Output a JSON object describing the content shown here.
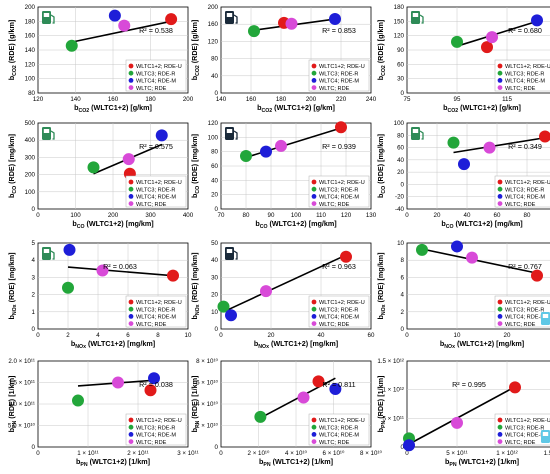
{
  "colors": {
    "WLTC1+2;RDE-U": "#e11a1a",
    "WLTC3;RDE-R": "#22a63a",
    "WLTC4;RDE-M": "#1e1ed8",
    "WLTC;RDE": "#d84ad8",
    "trendline": "#000000",
    "grid": "#c8c8c8"
  },
  "chart_data": [
    {
      "type": "scatter",
      "row": 0,
      "col": 0,
      "pump_icon": "fuel-pump-icon-green",
      "pump_pos": "top-left",
      "ylabel": "bCO2 (RDE) [g/km]",
      "xlabel": "bCO2 (WLTC1+2) [g/km]",
      "xlim": [
        120,
        200
      ],
      "ylim": [
        80,
        200
      ],
      "xticks": [
        120,
        140,
        160,
        180,
        200
      ],
      "yticks": [
        80,
        100,
        120,
        140,
        160,
        180,
        200
      ],
      "xtick_labels": [
        "120",
        "140",
        "160",
        "180",
        "200"
      ],
      "ytick_labels": [
        "80",
        "100",
        "120",
        "140",
        "160",
        "180",
        "200"
      ],
      "r2": "R² = 0.538",
      "r2_pos": "right",
      "points": [
        {
          "series": "WLTC1+2;RDE-U",
          "x": 191,
          "y": 183
        },
        {
          "series": "WLTC3;RDE-R",
          "x": 138,
          "y": 146
        },
        {
          "series": "WLTC4;RDE-M",
          "x": 161,
          "y": 188
        },
        {
          "series": "WLTC;RDE",
          "x": 166,
          "y": 174
        }
      ],
      "trend": [
        [
          138,
          151
        ],
        [
          191,
          180
        ]
      ],
      "legend": [
        "WLTC1+2; RDE-U",
        "WLTC3; RDE-R",
        "WLTC4; RDE-M",
        "WLTC; RDE"
      ]
    },
    {
      "type": "scatter",
      "row": 0,
      "col": 1,
      "pump_icon": "fuel-pump-icon-dark",
      "pump_pos": "top-left",
      "ylabel": "bCO2 (RDE) [g/km]",
      "xlabel": "bCO2 (WLTC1+2) [g/km]",
      "xlim": [
        140,
        240
      ],
      "ylim": [
        0,
        200
      ],
      "xticks": [
        140,
        160,
        180,
        200,
        220,
        240
      ],
      "yticks": [
        0,
        40,
        80,
        120,
        160,
        200
      ],
      "xtick_labels": [
        "140",
        "160",
        "180",
        "200",
        "220",
        "240"
      ],
      "ytick_labels": [
        "0",
        "40",
        "80",
        "120",
        "160",
        "200"
      ],
      "r2": "R² = 0.853",
      "r2_pos": "right",
      "points": [
        {
          "series": "WLTC1+2;RDE-U",
          "x": 182,
          "y": 163
        },
        {
          "series": "WLTC3;RDE-R",
          "x": 162,
          "y": 144
        },
        {
          "series": "WLTC4;RDE-M",
          "x": 216,
          "y": 172
        },
        {
          "series": "WLTC;RDE",
          "x": 187,
          "y": 161
        }
      ],
      "trend": [
        [
          162,
          146
        ],
        [
          216,
          172
        ]
      ],
      "legend": [
        "WLTC1+2; RDE-U",
        "WLTC3; RDE-R",
        "WLTC4; RDE-M",
        "WLTC; RDE"
      ]
    },
    {
      "type": "scatter",
      "row": 0,
      "col": 2,
      "pump_icon": "fuel-pump-icon-green",
      "pump_pos": "top-left",
      "ylabel": "bCO2 (RDE) [g/km]",
      "xlabel": "bCO2 (WLTC1+2) [g/km]",
      "xlim": [
        75,
        135
      ],
      "ylim": [
        0,
        180
      ],
      "xticks": [
        75,
        95,
        115,
        135
      ],
      "yticks": [
        0,
        30,
        60,
        90,
        120,
        150,
        180
      ],
      "xtick_labels": [
        "75",
        "95",
        "115",
        "135"
      ],
      "ytick_labels": [
        "0",
        "30",
        "60",
        "90",
        "120",
        "150",
        "180"
      ],
      "r2": "R² = 0.680",
      "r2_pos": "right",
      "points": [
        {
          "series": "WLTC1+2;RDE-U",
          "x": 107,
          "y": 96
        },
        {
          "series": "WLTC3;RDE-R",
          "x": 95,
          "y": 107
        },
        {
          "series": "WLTC4;RDE-M",
          "x": 127,
          "y": 152
        },
        {
          "series": "WLTC;RDE",
          "x": 109,
          "y": 117
        }
      ],
      "trend": [
        [
          95,
          98
        ],
        [
          127,
          150
        ]
      ],
      "legend": [
        "WLTC1+2; RDE-U",
        "WLTC3; RDE-R",
        "WLTC4; RDE-M",
        "WLTC; RDE"
      ]
    },
    {
      "type": "scatter",
      "row": 1,
      "col": 0,
      "pump_icon": "fuel-pump-icon-green",
      "pump_pos": "top-left",
      "ylabel": "bCO (RDE) [mg/km]",
      "xlabel": "bCO (WLTC1+2) [mg/km]",
      "xlim": [
        0,
        400
      ],
      "ylim": [
        0,
        500
      ],
      "xticks": [
        0,
        100,
        200,
        300,
        400
      ],
      "yticks": [
        0,
        100,
        200,
        300,
        400,
        500
      ],
      "xtick_labels": [
        "0",
        "100",
        "200",
        "300",
        "400"
      ],
      "ytick_labels": [
        "0",
        "100",
        "200",
        "300",
        "400",
        "500"
      ],
      "r2": "R² = 0.575",
      "r2_pos": "right",
      "points": [
        {
          "series": "WLTC1+2;RDE-U",
          "x": 245,
          "y": 205
        },
        {
          "series": "WLTC3;RDE-R",
          "x": 148,
          "y": 242
        },
        {
          "series": "WLTC4;RDE-M",
          "x": 330,
          "y": 428
        },
        {
          "series": "WLTC;RDE",
          "x": 242,
          "y": 290
        }
      ],
      "trend": [
        [
          148,
          205
        ],
        [
          330,
          375
        ]
      ],
      "legend": [
        "WLTC1+2; RDE-U",
        "WLTC3; RDE-R",
        "WLTC4; RDE-M",
        "WLTC; RDE"
      ]
    },
    {
      "type": "scatter",
      "row": 1,
      "col": 1,
      "pump_icon": "fuel-pump-icon-dark",
      "pump_pos": "top-left",
      "ylabel": "bCO (RDE) [mg/km]",
      "xlabel": "bCO (WLTC1+2) [mg/km]",
      "xlim": [
        70,
        130
      ],
      "ylim": [
        0,
        120
      ],
      "xticks": [
        70,
        80,
        90,
        100,
        110,
        120,
        130
      ],
      "yticks": [
        0,
        20,
        40,
        60,
        80,
        100,
        120
      ],
      "xtick_labels": [
        "70",
        "80",
        "90",
        "100",
        "110",
        "120",
        "130"
      ],
      "ytick_labels": [
        "0",
        "20",
        "40",
        "60",
        "80",
        "100",
        "120"
      ],
      "r2": "R² = 0.939",
      "r2_pos": "right",
      "points": [
        {
          "series": "WLTC1+2;RDE-U",
          "x": 118,
          "y": 114
        },
        {
          "series": "WLTC3;RDE-R",
          "x": 80,
          "y": 74
        },
        {
          "series": "WLTC4;RDE-M",
          "x": 88,
          "y": 80
        },
        {
          "series": "WLTC;RDE",
          "x": 94,
          "y": 88
        }
      ],
      "trend": [
        [
          80,
          72
        ],
        [
          118,
          113
        ]
      ],
      "legend": [
        "WLTC1+2; RDE-U",
        "WLTC3; RDE-R",
        "WLTC4; RDE-M",
        "WLTC; RDE"
      ]
    },
    {
      "type": "scatter",
      "row": 1,
      "col": 2,
      "pump_icon": "fuel-pump-icon-green",
      "pump_pos": "top-left",
      "ylabel": "bCO (RDE) [mg/km]",
      "xlabel": "bCO (WLTC1+2) [mg/km]",
      "xlim": [
        0,
        100
      ],
      "ylim": [
        -40,
        100
      ],
      "xticks": [
        0,
        20,
        40,
        60,
        80,
        100
      ],
      "yticks": [
        -40,
        -20,
        0,
        20,
        40,
        60,
        80,
        100
      ],
      "xtick_labels": [
        "0",
        "20",
        "40",
        "60",
        "80",
        "100"
      ],
      "ytick_labels": [
        "-40",
        "-20",
        "0",
        "20",
        "40",
        "60",
        "80",
        "100"
      ],
      "r2": "R² = 0.349",
      "r2_pos": "right",
      "points": [
        {
          "series": "WLTC1+2;RDE-U",
          "x": 92,
          "y": 78
        },
        {
          "series": "WLTC3;RDE-R",
          "x": 31,
          "y": 68
        },
        {
          "series": "WLTC4;RDE-M",
          "x": 38,
          "y": 33
        },
        {
          "series": "WLTC;RDE",
          "x": 55,
          "y": 60
        }
      ],
      "trend": [
        [
          31,
          52
        ],
        [
          92,
          76
        ]
      ],
      "legend": [
        "WLTC1+2; RDE-U",
        "WLTC3; RDE-R",
        "WLTC4; RDE-M",
        "WLTC; RDE"
      ]
    },
    {
      "type": "scatter",
      "row": 2,
      "col": 0,
      "pump_icon": "fuel-pump-icon-green",
      "pump_pos": "top-left",
      "ylabel": "bNOx (RDE) [mg/km]",
      "xlabel": "bNOx (WLTC1+2) [mg/km]",
      "xlim": [
        0,
        10
      ],
      "ylim": [
        0,
        5
      ],
      "xticks": [
        0,
        2,
        4,
        6,
        8,
        10
      ],
      "yticks": [
        0,
        1,
        2,
        3,
        4,
        5
      ],
      "xtick_labels": [
        "0",
        "2",
        "4",
        "6",
        "8",
        "10"
      ],
      "ytick_labels": [
        "0",
        "1",
        "2",
        "3",
        "4",
        "5"
      ],
      "r2": "R² = 0.063",
      "r2_pos": "center",
      "points": [
        {
          "series": "WLTC1+2;RDE-U",
          "x": 9.0,
          "y": 3.1
        },
        {
          "series": "WLTC3;RDE-R",
          "x": 2.0,
          "y": 2.4
        },
        {
          "series": "WLTC4;RDE-M",
          "x": 2.1,
          "y": 4.6
        },
        {
          "series": "WLTC;RDE",
          "x": 4.3,
          "y": 3.4
        }
      ],
      "trend": [
        [
          2.0,
          3.6
        ],
        [
          9.0,
          3.1
        ]
      ],
      "legend": [
        "WLTC1+2; RDE-U",
        "WLTC3; RDE-R",
        "WLTC4; RDE-M",
        "WLTC; RDE"
      ]
    },
    {
      "type": "scatter",
      "row": 2,
      "col": 1,
      "pump_icon": "fuel-pump-icon-dark",
      "pump_pos": "top-left",
      "ylabel": "bNOx (RDE) [mg/km]",
      "xlabel": "bNOx (WLTC1+2) [mg/km]",
      "xlim": [
        0,
        60
      ],
      "ylim": [
        0,
        50
      ],
      "xticks": [
        0,
        20,
        40,
        60
      ],
      "yticks": [
        0,
        10,
        20,
        30,
        40,
        50
      ],
      "xtick_labels": [
        "0",
        "20",
        "40",
        "60"
      ],
      "ytick_labels": [
        "0",
        "10",
        "20",
        "30",
        "40",
        "50"
      ],
      "r2": "R² = 0.963",
      "r2_pos": "right",
      "points": [
        {
          "series": "WLTC1+2;RDE-U",
          "x": 50,
          "y": 42
        },
        {
          "series": "WLTC3;RDE-R",
          "x": 1,
          "y": 13
        },
        {
          "series": "WLTC4;RDE-M",
          "x": 4,
          "y": 8
        },
        {
          "series": "WLTC;RDE",
          "x": 18,
          "y": 22
        }
      ],
      "trend": [
        [
          1,
          10
        ],
        [
          50,
          43
        ]
      ],
      "legend": [
        "WLTC1+2; RDE-U",
        "WLTC3; RDE-R",
        "WLTC4; RDE-M",
        "WLTC; RDE"
      ]
    },
    {
      "type": "scatter",
      "row": 2,
      "col": 2,
      "pump_icon": "fuel-pump-icon-blue",
      "pump_pos": "bottom-right",
      "ylabel": "bNOx (RDE) [mg/km]",
      "xlabel": "bNOx (WLTC1+2) [mg/km]",
      "xlim": [
        0,
        30
      ],
      "ylim": [
        0,
        10
      ],
      "xticks": [
        0,
        10,
        20,
        30
      ],
      "yticks": [
        0,
        2,
        4,
        6,
        8,
        10
      ],
      "xtick_labels": [
        "0",
        "10",
        "20",
        "30"
      ],
      "ytick_labels": [
        "0",
        "2",
        "4",
        "6",
        "8",
        "10"
      ],
      "r2": "R² = 0.767",
      "r2_pos": "right",
      "points": [
        {
          "series": "WLTC1+2;RDE-U",
          "x": 26,
          "y": 6.2
        },
        {
          "series": "WLTC3;RDE-R",
          "x": 3,
          "y": 9.2
        },
        {
          "series": "WLTC4;RDE-M",
          "x": 10,
          "y": 9.6
        },
        {
          "series": "WLTC;RDE",
          "x": 13,
          "y": 8.3
        }
      ],
      "trend": [
        [
          3,
          9.3
        ],
        [
          26,
          6.5
        ]
      ],
      "legend": [
        "WLTC1+2; RDE-U",
        "WLTC3; RDE-R",
        "WLTC4; RDE-M",
        "WLTC; RDE"
      ]
    },
    {
      "type": "scatter",
      "row": 3,
      "col": 0,
      "pump_icon": "",
      "pump_pos": "",
      "ylabel": "bPN (RDE) [1/km]",
      "xlabel": "bPN (WLTC1+2) [1/km]",
      "xlim": [
        0,
        300000000000.0
      ],
      "ylim": [
        0,
        200000000000.0
      ],
      "xticks": [
        0,
        100000000000.0,
        200000000000.0,
        300000000000.0
      ],
      "yticks": [
        0,
        50000000000.0,
        100000000000.0,
        150000000000.0,
        200000000000.0
      ],
      "xtick_labels": [
        "0",
        "1 × 10¹¹",
        "2 × 10¹¹",
        "3 × 10¹¹"
      ],
      "ytick_labels": [
        "0",
        "5.0 × 10¹⁰",
        "1.0 × 10¹¹",
        "1.5 × 10¹¹",
        "2.0 × 10¹¹"
      ],
      "r2": "R² = 0.038",
      "r2_pos": "right",
      "points": [
        {
          "series": "WLTC1+2;RDE-U",
          "x": 225000000000.0,
          "y": 132000000000.0
        },
        {
          "series": "WLTC3;RDE-R",
          "x": 80000000000.0,
          "y": 108000000000.0
        },
        {
          "series": "WLTC4;RDE-M",
          "x": 232000000000.0,
          "y": 160000000000.0
        },
        {
          "series": "WLTC;RDE",
          "x": 160000000000.0,
          "y": 150000000000.0
        }
      ],
      "trend": [
        [
          80000000000.0,
          142000000000.0
        ],
        [
          230000000000.0,
          155000000000.0
        ]
      ],
      "legend": [
        "WLTC1+2; RDE-U",
        "WLTC3; RDE-R",
        "WLTC4; RDE-M",
        "WLTC; RDE"
      ]
    },
    {
      "type": "scatter",
      "row": 3,
      "col": 1,
      "pump_icon": "",
      "pump_pos": "",
      "ylabel": "bPN (RDE) [1/km]",
      "xlabel": "bPN (WLTC1+2) [1/km]",
      "xlim": [
        0,
        80000000000.0
      ],
      "ylim": [
        0,
        80000000000.0
      ],
      "xticks": [
        0,
        20000000000.0,
        40000000000.0,
        60000000000.0,
        80000000000.0
      ],
      "yticks": [
        0,
        20000000000.0,
        40000000000.0,
        60000000000.0,
        80000000000.0
      ],
      "xtick_labels": [
        "0",
        "2 × 10¹⁰",
        "4 × 10¹⁰",
        "6 × 10¹⁰",
        "8 × 10¹⁰"
      ],
      "ytick_labels": [
        "0",
        "2 × 10¹⁰",
        "4 × 10¹⁰",
        "6 × 10¹⁰",
        "8 × 10¹⁰"
      ],
      "r2": "R² = 0.811",
      "r2_pos": "right",
      "points": [
        {
          "series": "WLTC1+2;RDE-U",
          "x": 52000000000.0,
          "y": 61000000000.0
        },
        {
          "series": "WLTC3;RDE-R",
          "x": 21000000000.0,
          "y": 28000000000.0
        },
        {
          "series": "WLTC4;RDE-M",
          "x": 61000000000.0,
          "y": 54000000000.0
        },
        {
          "series": "WLTC;RDE",
          "x": 44000000000.0,
          "y": 46000000000.0
        }
      ],
      "trend": [
        [
          21000000000.0,
          27000000000.0
        ],
        [
          61000000000.0,
          64000000000.0
        ]
      ],
      "legend": [
        "WLTC1+2; RDE-U",
        "WLTC3; RDE-R",
        "WLTC4; RDE-M",
        "WLTC; RDE"
      ]
    },
    {
      "type": "scatter",
      "row": 3,
      "col": 2,
      "pump_icon": "fuel-pump-icon-blue",
      "pump_pos": "bottom-right",
      "ylabel": "bPN (RDE) [1/km]",
      "xlabel": "bPN (WLTC1+2) [1/km]",
      "xlim": [
        0,
        1500000000000.0
      ],
      "ylim": [
        0,
        1500000000000.0
      ],
      "xticks": [
        0,
        500000000000.0,
        1000000000000.0,
        1500000000000.0
      ],
      "yticks": [
        0,
        500000000000.0,
        1000000000000.0,
        1500000000000.0
      ],
      "xtick_labels": [
        "0",
        "5 × 10¹¹",
        "1 × 10¹²",
        "1.5 × 10¹²"
      ],
      "ytick_labels": [
        "0",
        "5 × 10¹¹",
        "1 × 10¹²",
        "1.5 × 10¹²"
      ],
      "r2": "R² = 0.995",
      "r2_pos": "left",
      "points": [
        {
          "series": "WLTC1+2;RDE-U",
          "x": 1080000000000.0,
          "y": 1040000000000.0
        },
        {
          "series": "WLTC3;RDE-R",
          "x": 20000000000.0,
          "y": 150000000000.0
        },
        {
          "series": "WLTC4;RDE-M",
          "x": 20000000000.0,
          "y": 30000000000.0
        },
        {
          "series": "WLTC;RDE",
          "x": 500000000000.0,
          "y": 420000000000.0
        }
      ],
      "trend": [
        [
          20000000000.0,
          50000000000.0
        ],
        [
          1080000000000.0,
          1050000000000.0
        ]
      ],
      "legend": [
        "WLTC1+2; RDE-U",
        "WLTC3; RDE-R",
        "WLTC4; RDE-M",
        "WLTC; RDE"
      ]
    }
  ]
}
